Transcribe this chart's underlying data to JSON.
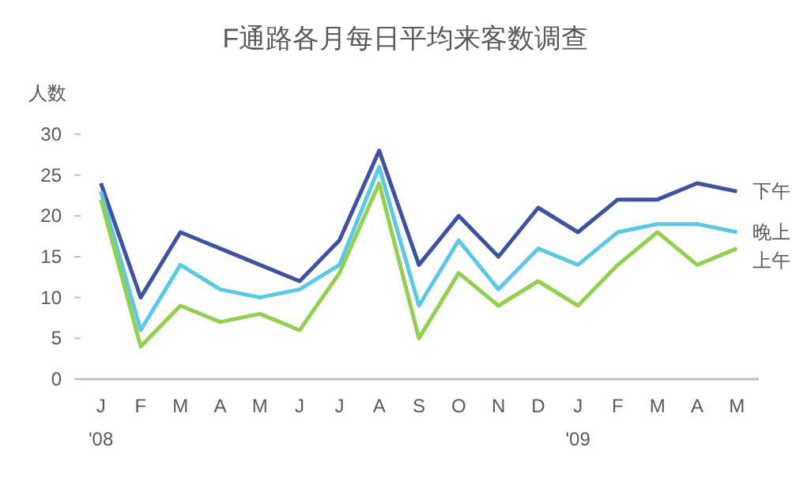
{
  "chart_data": {
    "type": "line",
    "title": "F通路各月每日平均来客数调查",
    "ylabel": "人数",
    "categories": [
      "J\n'08",
      "F",
      "M",
      "A",
      "M",
      "J",
      "J",
      "A",
      "S",
      "O",
      "N",
      "D",
      "J\n'09",
      "F",
      "M",
      "A",
      "M"
    ],
    "series": [
      {
        "name": "下午",
        "color": "#3f51a3",
        "values": [
          24,
          10,
          18,
          16,
          14,
          12,
          17,
          28,
          14,
          20,
          15,
          21,
          18,
          22,
          22,
          24,
          23
        ]
      },
      {
        "name": "晚上",
        "color": "#5bc8e8",
        "values": [
          23,
          6,
          14,
          11,
          10,
          11,
          14,
          26,
          9,
          17,
          11,
          16,
          14,
          18,
          19,
          19,
          18
        ]
      },
      {
        "name": "上午",
        "color": "#92d050",
        "values": [
          22,
          4,
          9,
          7,
          8,
          6,
          13,
          24,
          5,
          13,
          9,
          12,
          9,
          14,
          18,
          14,
          16
        ]
      }
    ],
    "ylim": [
      0,
      30
    ],
    "yticks": [
      0,
      5,
      10,
      15,
      20,
      25,
      30
    ],
    "grid": false,
    "legend": false,
    "marker": "none",
    "line_style": "solid"
  }
}
